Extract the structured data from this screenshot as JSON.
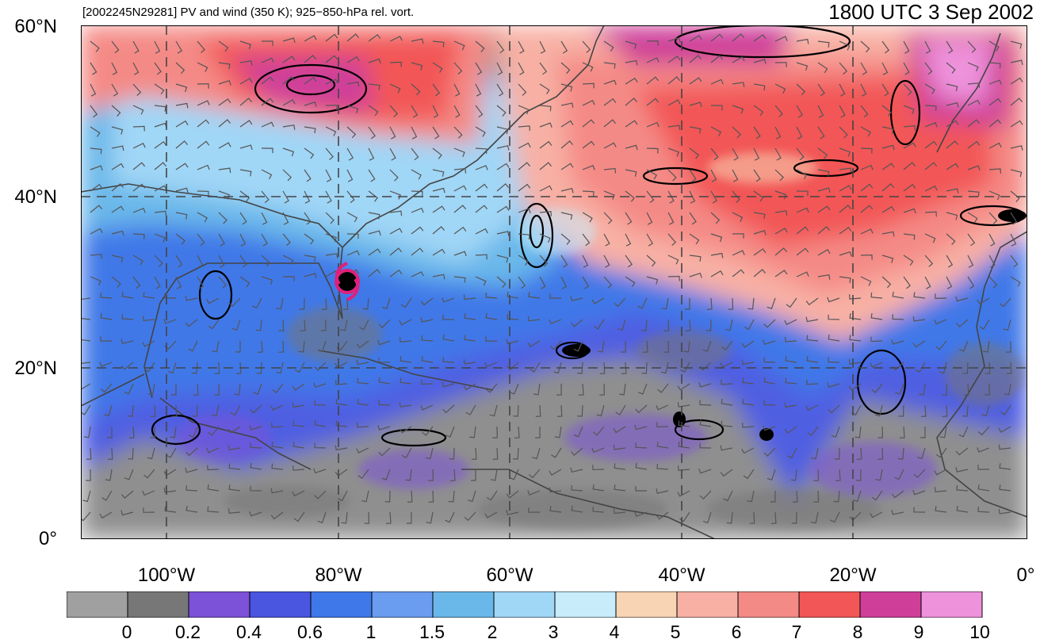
{
  "header": {
    "left_title": "[2002245N29281] PV and wind (350 K); 925−850-hPa rel. vort.",
    "right_title": "1800 UTC 3 Sep 2002"
  },
  "axes": {
    "lat_labels": [
      "60°N",
      "40°N",
      "20°N",
      "0°"
    ],
    "lon_labels": [
      "100°W",
      "80°W",
      "60°W",
      "40°W",
      "20°W",
      "0°"
    ],
    "lat_range": [
      0,
      60
    ],
    "lon_range": [
      -110,
      0
    ],
    "gridlines": "dashed every 20 degrees"
  },
  "map": {
    "projection": "cylindrical equidistant",
    "storm_marker": {
      "type": "tropical cyclone symbol",
      "lat": 30,
      "lon": -79,
      "color": "#e0207a"
    }
  },
  "colorbar": {
    "labels": [
      "0",
      "0.2",
      "0.4",
      "0.6",
      "1",
      "1.5",
      "2",
      "3",
      "4",
      "5",
      "6",
      "7",
      "8",
      "9",
      "10"
    ],
    "colors": [
      "#a0a0a0",
      "#777777",
      "#7b52d8",
      "#4a55e0",
      "#3f78e8",
      "#6a9cf0",
      "#6ab8ea",
      "#a0d6f6",
      "#c8ecfa",
      "#f8d4b4",
      "#f8b0a4",
      "#f48a86",
      "#f25656",
      "#cf3f9a",
      "#ee92dc"
    ]
  }
}
